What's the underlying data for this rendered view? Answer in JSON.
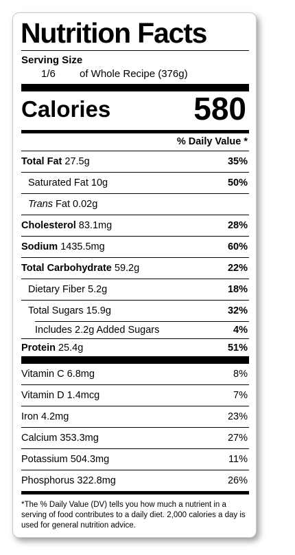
{
  "title": "Nutrition Facts",
  "serving": {
    "label": "Serving Size",
    "amount": "1/6",
    "description": "of Whole Recipe (376g)"
  },
  "calories": {
    "label": "Calories",
    "value": "580"
  },
  "dv_header": "% Daily Value *",
  "nutrients": {
    "total_fat": {
      "name": "Total Fat",
      "amount": "27.5g",
      "dv": "35%"
    },
    "saturated_fat": {
      "name": "Saturated Fat 10g",
      "dv": "50%"
    },
    "trans_fat": {
      "name_italic": "Trans",
      "name_rest": "Fat 0.02g"
    },
    "cholesterol": {
      "name": "Cholesterol",
      "amount": "83.1mg",
      "dv": "28%"
    },
    "sodium": {
      "name": "Sodium",
      "amount": "1435.5mg",
      "dv": "60%"
    },
    "total_carbohydrate": {
      "name": "Total Carbohydrate",
      "amount": "59.2g",
      "dv": "22%"
    },
    "dietary_fiber": {
      "name": "Dietary Fiber 5.2g",
      "dv": "18%"
    },
    "total_sugars": {
      "name": "Total Sugars 15.9g",
      "dv": "32%"
    },
    "added_sugars": {
      "name": "Includes 2.2g Added Sugars",
      "dv": "4%"
    },
    "protein": {
      "name": "Protein",
      "amount": "25.4g",
      "dv": "51%"
    }
  },
  "vitamins": [
    {
      "name": "Vitamin C 6.8mg",
      "dv": "8%"
    },
    {
      "name": "Vitamin D 1.4mcg",
      "dv": "7%"
    },
    {
      "name": "Iron 4.2mg",
      "dv": "23%"
    },
    {
      "name": "Calcium 353.3mg",
      "dv": "27%"
    },
    {
      "name": "Potassium 504.3mg",
      "dv": "11%"
    },
    {
      "name": "Phosphorus 322.8mg",
      "dv": "26%"
    }
  ],
  "footnote": "*The % Daily Value (DV) tells you how much a nutrient in a serving of food contributes to a daily diet. 2,000 calories a day is used for general nutrition advice."
}
